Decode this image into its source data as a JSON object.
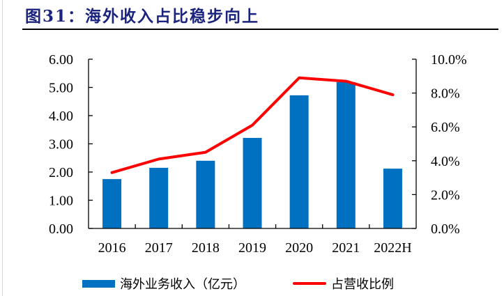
{
  "header": {
    "title": "图31：海外收入占比稳步向上"
  },
  "colors": {
    "title": "#1a237e",
    "bar": "#0070c0",
    "line": "#ff0000",
    "axis": "#000000"
  },
  "chart_data": {
    "type": "bar+line",
    "title": "图31：海外收入占比稳步向上",
    "categories": [
      "2016",
      "2017",
      "2018",
      "2019",
      "2020",
      "2021",
      "2022H"
    ],
    "series": [
      {
        "name": "海外业务收入（亿元）",
        "type": "bar",
        "axis": "left",
        "values": [
          1.75,
          2.15,
          2.4,
          3.21,
          4.72,
          5.19,
          2.12
        ]
      },
      {
        "name": "占营收比例",
        "type": "line",
        "axis": "right",
        "values": [
          3.3,
          4.1,
          4.5,
          6.1,
          8.9,
          8.7,
          7.9
        ]
      }
    ],
    "y_left": {
      "ylim": [
        0,
        6
      ],
      "ticks": [
        "0.00",
        "1.00",
        "2.00",
        "3.00",
        "4.00",
        "5.00",
        "6.00"
      ]
    },
    "y_right": {
      "ylim": [
        0,
        10
      ],
      "unit": "%",
      "ticks": [
        "0.0%",
        "2.0%",
        "4.0%",
        "6.0%",
        "8.0%",
        "10.0%"
      ]
    },
    "xlabel": "",
    "ylabel": "",
    "grid": false,
    "legend_position": "bottom"
  },
  "legend": {
    "bar_label": "海外业务收入（亿元）",
    "line_label": "占营收比例"
  }
}
